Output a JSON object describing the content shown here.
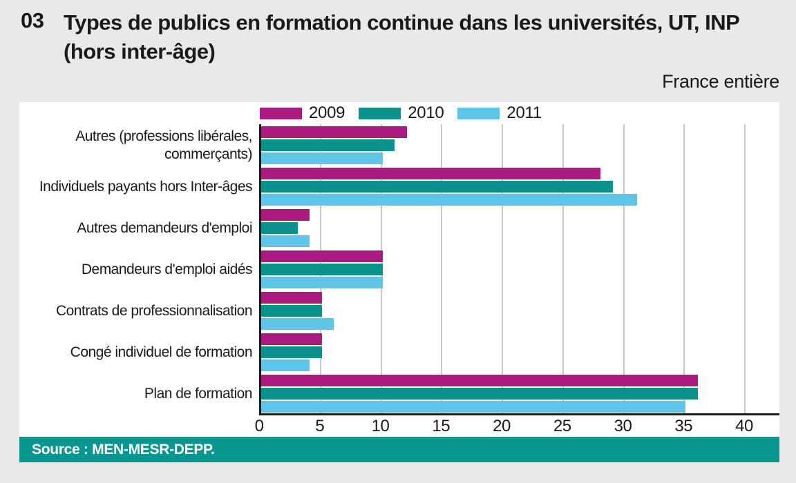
{
  "header": {
    "number": "03",
    "title": "Types de publics en formation continue dans les universités, UT, INP (hors inter-âge)",
    "region": "France entière"
  },
  "footer": {
    "source": "Source : MEN-MESR-DEPP."
  },
  "colors": {
    "background": "#e9e9e9",
    "plot_background": "#ffffff",
    "gridline": "#c8c8c8",
    "axis": "#1a1a1a",
    "footer_band": "#089690",
    "series_2009": "#ab1a7e",
    "series_2010": "#0a918c",
    "series_2011": "#5ec4e8"
  },
  "chart_data": {
    "type": "bar",
    "orientation": "horizontal",
    "title": "Types de publics en formation continue dans les universités, UT, INP (hors inter-âge)",
    "subtitle": "France entière",
    "categories": [
      "Autres (professions libérales, commerçants)",
      "Individuels payants hors Inter-âges",
      "Autres demandeurs d'emploi",
      "Demandeurs d'emploi aidés",
      "Contrats de professionnalisation",
      "Congé individuel de formation",
      "Plan de formation"
    ],
    "series": [
      {
        "name": "2009",
        "color": "#ab1a7e",
        "values": [
          12,
          28,
          4,
          10,
          5,
          5,
          36
        ]
      },
      {
        "name": "2010",
        "color": "#0a918c",
        "values": [
          11,
          29,
          3,
          10,
          5,
          5,
          36
        ]
      },
      {
        "name": "2011",
        "color": "#5ec4e8",
        "values": [
          10,
          31,
          4,
          10,
          6,
          4,
          35
        ]
      }
    ],
    "xlim": [
      0,
      40
    ],
    "xticks": [
      0,
      5,
      10,
      15,
      20,
      25,
      30,
      35,
      40
    ],
    "grid": true,
    "legend_position": "top"
  }
}
